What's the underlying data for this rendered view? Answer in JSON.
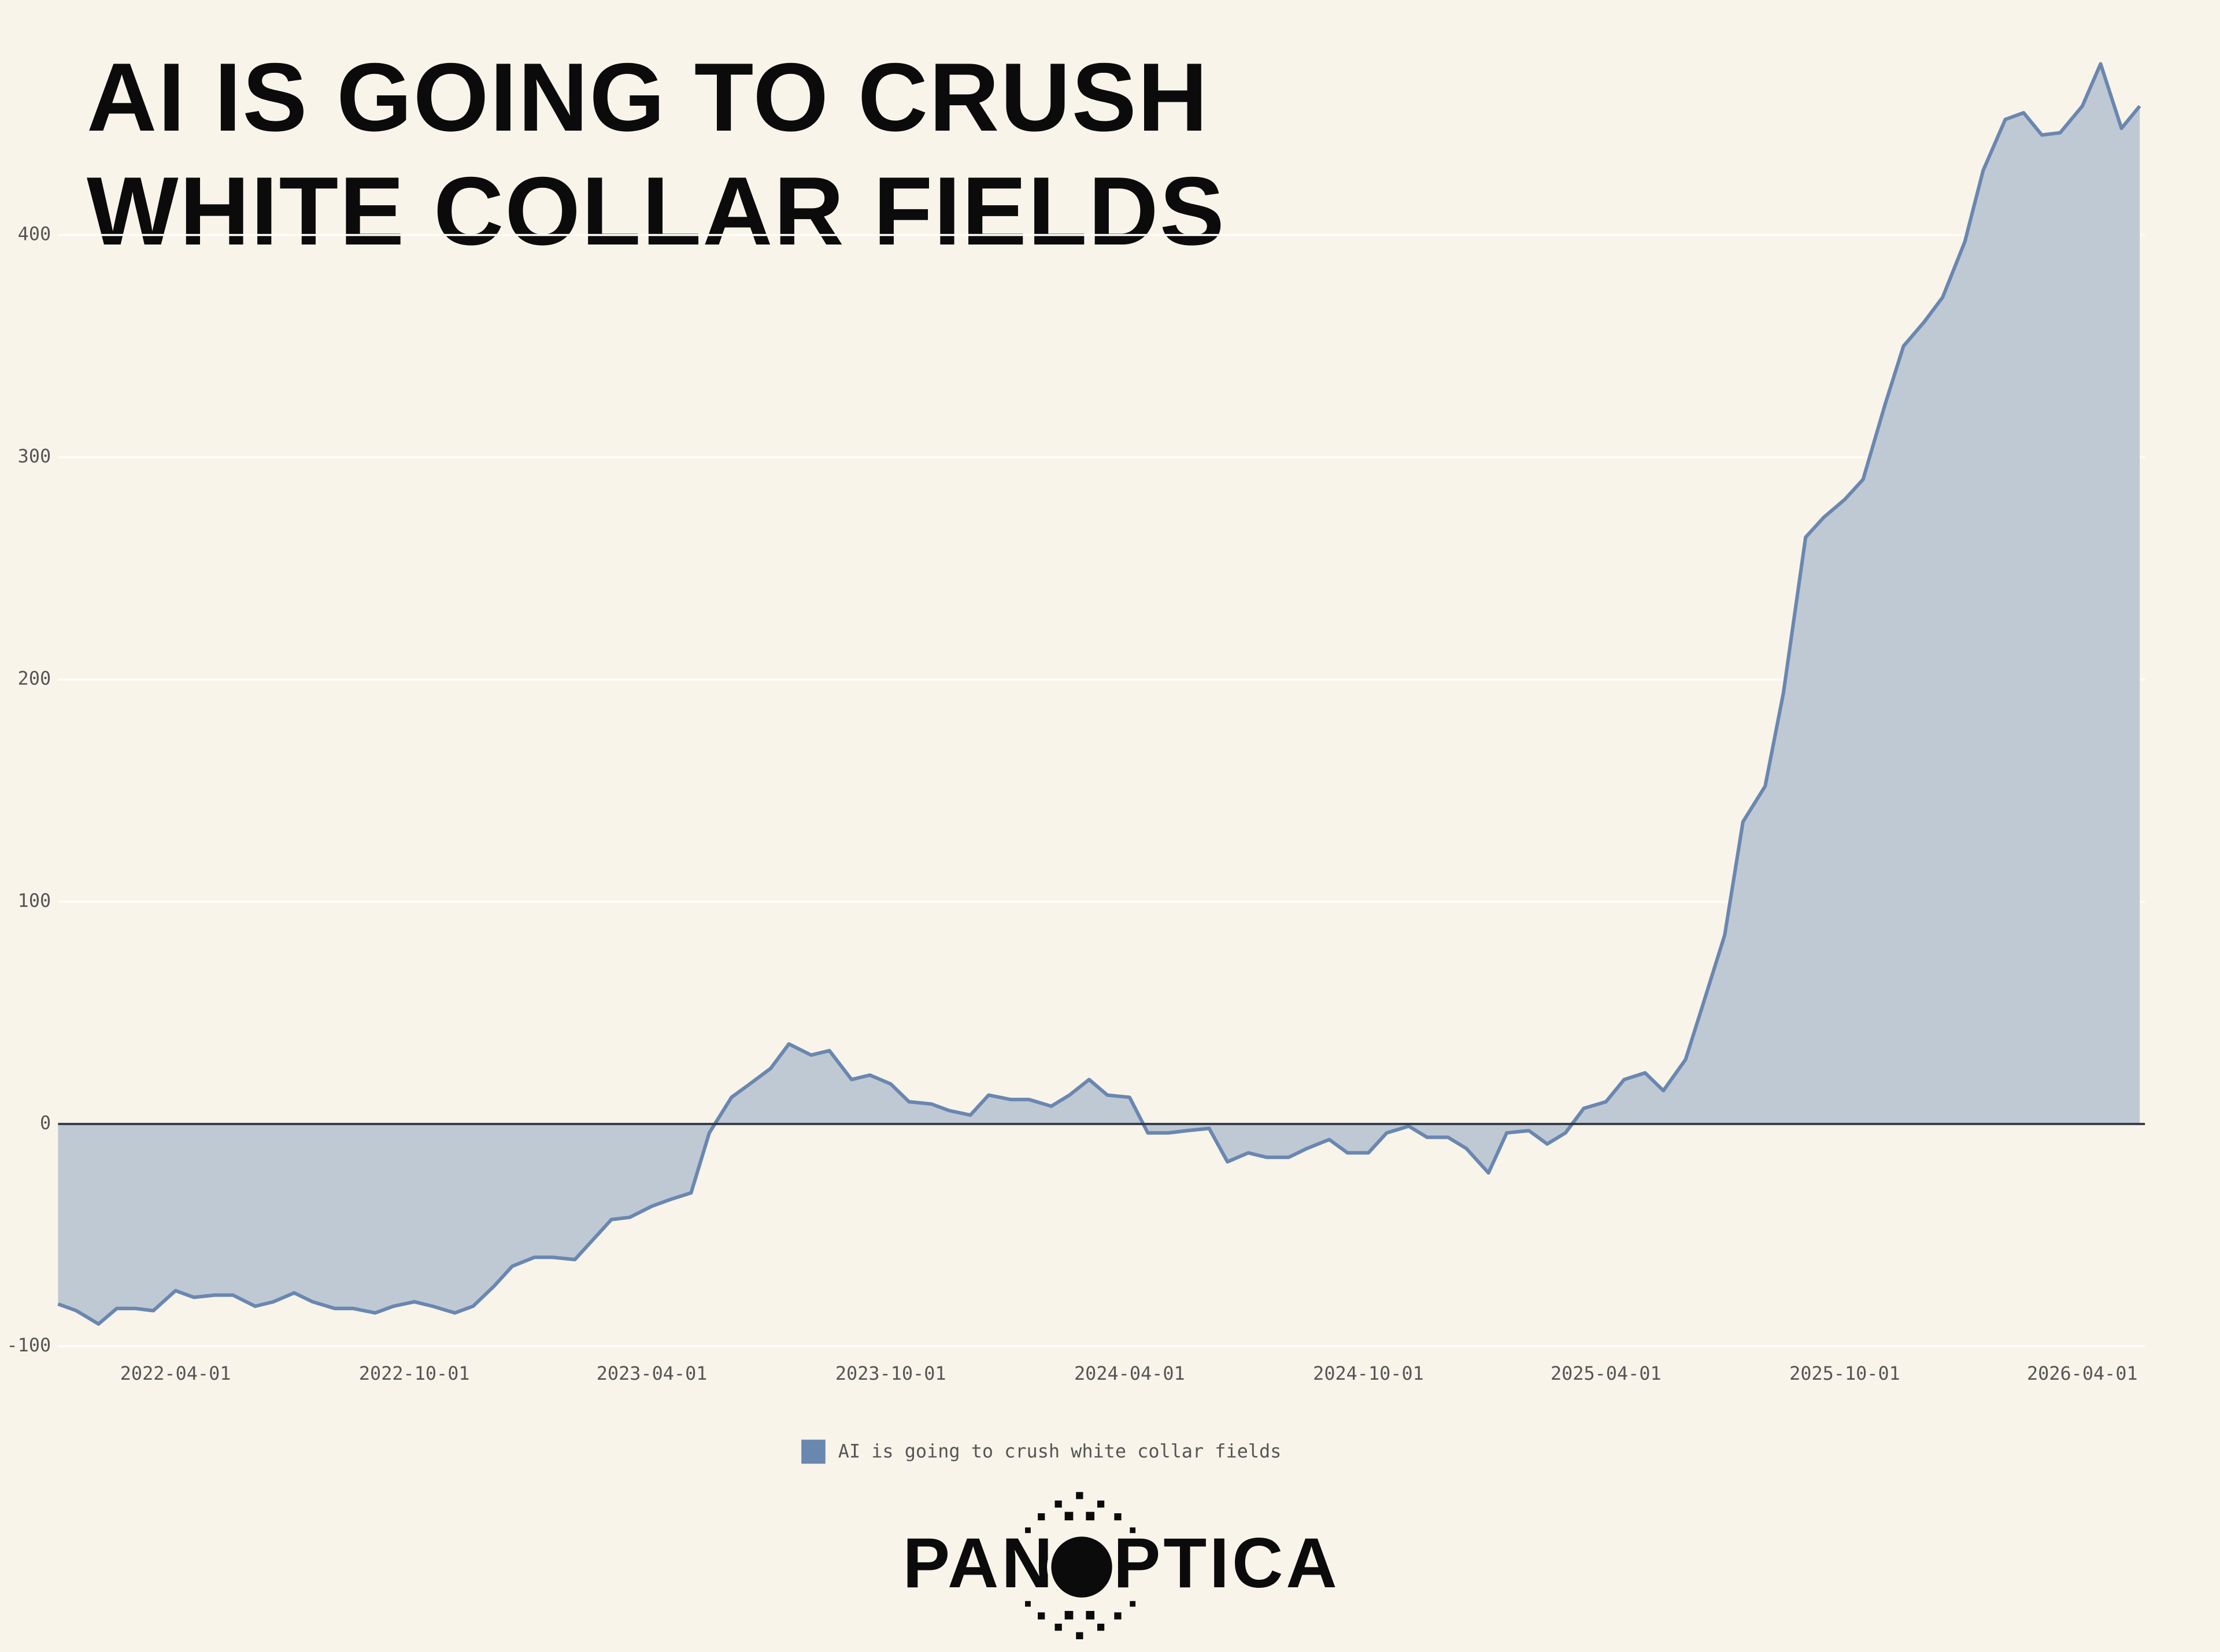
{
  "chart_data": {
    "type": "area",
    "title": "AI IS GOING TO CRUSH WHITE COLLAR FIELDS",
    "brand": "PANOPTICA",
    "series": [
      {
        "name": "AI is going to crush white collar fields",
        "color": "#6a87b0",
        "fill": "#bfc9d4",
        "x": [
          "2022-01-01",
          "2022-01-15",
          "2022-02-01",
          "2022-02-15",
          "2022-03-01",
          "2022-03-15",
          "2022-04-01",
          "2022-04-15",
          "2022-05-01",
          "2022-05-15",
          "2022-06-01",
          "2022-06-15",
          "2022-07-01",
          "2022-07-15",
          "2022-08-01",
          "2022-08-15",
          "2022-09-01",
          "2022-09-15",
          "2022-10-01",
          "2022-10-15",
          "2022-11-01",
          "2022-11-15",
          "2022-12-01",
          "2022-12-15",
          "2023-01-01",
          "2023-01-15",
          "2023-02-01",
          "2023-02-15",
          "2023-03-01",
          "2023-03-15",
          "2023-04-01",
          "2023-04-15",
          "2023-05-01",
          "2023-05-15",
          "2023-06-01",
          "2023-06-15",
          "2023-07-01",
          "2023-07-15",
          "2023-08-01",
          "2023-08-15",
          "2023-09-01",
          "2023-09-15",
          "2023-10-01",
          "2023-10-15",
          "2023-11-01",
          "2023-11-15",
          "2023-12-01",
          "2023-12-15",
          "2024-01-01",
          "2024-01-15",
          "2024-02-01",
          "2024-02-15",
          "2024-03-01",
          "2024-03-15",
          "2024-04-01",
          "2024-04-15",
          "2024-05-01",
          "2024-05-15",
          "2024-06-01",
          "2024-06-15",
          "2024-07-01",
          "2024-07-15",
          "2024-08-01",
          "2024-08-15",
          "2024-09-01",
          "2024-09-15",
          "2024-10-01",
          "2024-10-15",
          "2024-11-01",
          "2024-11-15",
          "2024-12-01",
          "2024-12-15",
          "2025-01-01",
          "2025-01-15",
          "2025-02-01",
          "2025-02-15",
          "2025-03-01",
          "2025-03-15",
          "2025-04-01",
          "2025-04-15",
          "2025-05-01",
          "2025-05-15",
          "2025-06-01",
          "2025-06-15",
          "2025-07-01",
          "2025-07-15",
          "2025-08-01",
          "2025-08-15",
          "2025-09-01",
          "2025-09-15",
          "2025-10-01",
          "2025-10-15",
          "2025-11-01",
          "2025-11-15",
          "2025-12-01",
          "2025-12-15",
          "2026-01-01",
          "2026-01-15",
          "2026-02-01",
          "2026-02-15",
          "2026-03-01",
          "2026-03-15",
          "2026-04-01",
          "2026-04-15",
          "2026-05-01",
          "2026-05-15"
        ],
        "values": [
          -81,
          -84,
          -90,
          -83,
          -83,
          -84,
          -75,
          -78,
          -77,
          -77,
          -82,
          -80,
          -76,
          -80,
          -83,
          -83,
          -85,
          -82,
          -80,
          -82,
          -85,
          -82,
          -73,
          -64,
          -60,
          -60,
          -61,
          -52,
          -43,
          -42,
          -37,
          -34,
          -31,
          -4,
          12,
          18,
          25,
          36,
          31,
          33,
          20,
          22,
          18,
          10,
          9,
          6,
          4,
          13,
          11,
          11,
          8,
          13,
          20,
          13,
          12,
          -4,
          -4,
          -3,
          -2,
          -17,
          -13,
          -15,
          -15,
          -11,
          -7,
          -13,
          -13,
          -4,
          -1,
          -6,
          -6,
          -11,
          -22,
          -4,
          -3,
          -9,
          -4,
          7,
          10,
          20,
          23,
          15,
          29,
          55,
          85,
          136,
          152,
          194,
          264,
          273,
          281,
          290,
          324,
          350,
          361,
          372,
          397,
          429,
          452,
          455,
          445,
          446,
          458,
          477,
          448,
          458
        ]
      }
    ],
    "xlim": [
      "2022-01-01",
      "2026-05-19"
    ],
    "xticks": [
      "2022-04-01",
      "2022-10-01",
      "2023-04-01",
      "2023-10-01",
      "2024-04-01",
      "2024-10-01",
      "2025-04-01",
      "2025-10-01",
      "2026-04-01"
    ],
    "ylim": [
      -100,
      480
    ],
    "yticks": [
      -100,
      0,
      100,
      200,
      300,
      400
    ],
    "grid": true
  }
}
